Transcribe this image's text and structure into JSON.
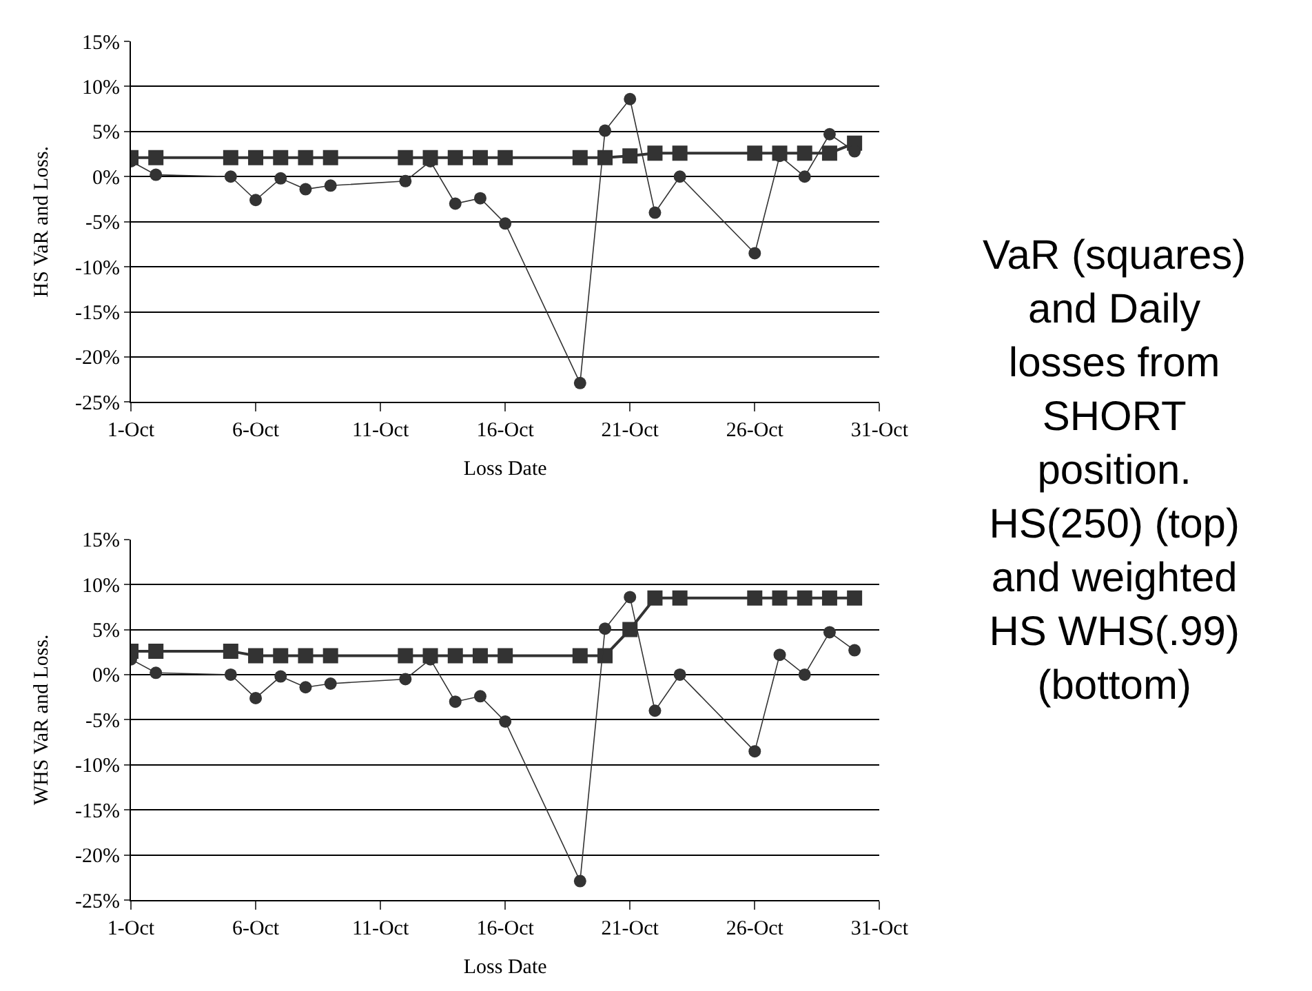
{
  "chart_data": [
    {
      "type": "line",
      "ylabel": "HS VaR and Loss.",
      "xlabel": "Loss Date",
      "annotations": [
        "VaR (squares) and Daily losses from SHORT position. HS(250) (top) and weighted HS WHS(.99) (bottom)"
      ],
      "x": [
        "--10-01",
        "--10-02",
        "--10-05",
        "--10-06",
        "--10-07",
        "--10-08",
        "--10-09",
        "--10-12",
        "--10-13",
        "--10-14",
        "--10-15",
        "--10-16",
        "--10-19",
        "--10-20",
        "--10-21",
        "--10-22",
        "--10-23",
        "--10-26",
        "--10-27",
        "--10-28",
        "--10-29",
        "--10-30"
      ],
      "series": [
        {
          "color": "#333333",
          "marker": "square",
          "line_style": "solid",
          "values": [
            2.1,
            2.1,
            2.1,
            2.1,
            2.1,
            2.1,
            2.1,
            2.1,
            2.1,
            2.1,
            2.1,
            2.1,
            2.1,
            2.1,
            2.3,
            2.6,
            2.6,
            2.6,
            2.6,
            2.6,
            2.6,
            3.7
          ]
        },
        {
          "color": "#333333",
          "marker": "circle",
          "line_style": "solid",
          "values": [
            1.7,
            0.2,
            0.0,
            -2.6,
            -0.2,
            -1.4,
            -1.0,
            -0.5,
            1.7,
            -3.0,
            -2.4,
            -5.2,
            -22.9,
            5.1,
            8.6,
            -4.0,
            0.0,
            -8.5,
            2.3,
            0.0,
            4.7,
            2.8
          ]
        }
      ],
      "xlim": [
        "--10-01",
        "--10-31"
      ],
      "xticks": [
        {
          "value": "--10-01",
          "label": "1-Oct"
        },
        {
          "value": "--10-06",
          "label": "6-Oct"
        },
        {
          "value": "--10-11",
          "label": "11-Oct"
        },
        {
          "value": "--10-16",
          "label": "16-Oct"
        },
        {
          "value": "--10-21",
          "label": "21-Oct"
        },
        {
          "value": "--10-26",
          "label": "26-Oct"
        },
        {
          "value": "--10-31",
          "label": "31-Oct"
        }
      ],
      "ylim": [
        -25,
        15
      ],
      "yticks": [
        {
          "value": -25,
          "label": "-25%"
        },
        {
          "value": -20,
          "label": "-20%"
        },
        {
          "value": -15,
          "label": "-15%"
        },
        {
          "value": -10,
          "label": "-10%"
        },
        {
          "value": -5,
          "label": "-5%"
        },
        {
          "value": 0,
          "label": "0%"
        },
        {
          "value": 5,
          "label": "5%"
        },
        {
          "value": 10,
          "label": "10%"
        },
        {
          "value": 15,
          "label": "15%"
        }
      ],
      "grid": "y"
    },
    {
      "type": "line",
      "ylabel": "WHS VaR and Loss.",
      "xlabel": "Loss Date",
      "x": [
        "--10-01",
        "--10-02",
        "--10-05",
        "--10-06",
        "--10-07",
        "--10-08",
        "--10-09",
        "--10-12",
        "--10-13",
        "--10-14",
        "--10-15",
        "--10-16",
        "--10-19",
        "--10-20",
        "--10-21",
        "--10-22",
        "--10-23",
        "--10-26",
        "--10-27",
        "--10-28",
        "--10-29",
        "--10-30"
      ],
      "series": [
        {
          "color": "#333333",
          "marker": "square",
          "line_style": "solid",
          "values": [
            2.6,
            2.6,
            2.6,
            2.1,
            2.1,
            2.1,
            2.1,
            2.1,
            2.1,
            2.1,
            2.1,
            2.1,
            2.1,
            2.1,
            5.0,
            8.5,
            8.5,
            8.5,
            8.5,
            8.5,
            8.5,
            8.5
          ]
        },
        {
          "color": "#333333",
          "marker": "circle",
          "line_style": "solid",
          "values": [
            1.7,
            0.2,
            0.0,
            -2.6,
            -0.2,
            -1.4,
            -1.0,
            -0.5,
            1.7,
            -3.0,
            -2.4,
            -5.2,
            -22.9,
            5.1,
            8.6,
            -4.0,
            0.0,
            -8.5,
            2.2,
            0.0,
            4.7,
            2.7
          ]
        }
      ],
      "xlim": [
        "--10-01",
        "--10-31"
      ],
      "xticks": [
        {
          "value": "--10-01",
          "label": "1-Oct"
        },
        {
          "value": "--10-06",
          "label": "6-Oct"
        },
        {
          "value": "--10-11",
          "label": "11-Oct"
        },
        {
          "value": "--10-16",
          "label": "16-Oct"
        },
        {
          "value": "--10-21",
          "label": "21-Oct"
        },
        {
          "value": "--10-26",
          "label": "26-Oct"
        },
        {
          "value": "--10-31",
          "label": "31-Oct"
        }
      ],
      "ylim": [
        -25,
        15
      ],
      "yticks": [
        {
          "value": -25,
          "label": "-25%"
        },
        {
          "value": -20,
          "label": "-20%"
        },
        {
          "value": -15,
          "label": "-15%"
        },
        {
          "value": -10,
          "label": "-10%"
        },
        {
          "value": -5,
          "label": "-5%"
        },
        {
          "value": 0,
          "label": "0%"
        },
        {
          "value": 5,
          "label": "5%"
        },
        {
          "value": 10,
          "label": "10%"
        },
        {
          "value": 15,
          "label": "15%"
        }
      ],
      "grid": "y"
    }
  ]
}
